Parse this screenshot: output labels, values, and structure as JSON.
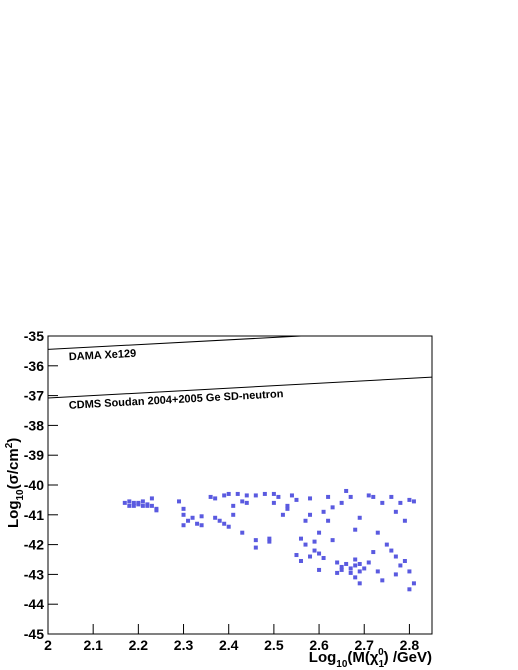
{
  "chart_data": {
    "type": "scatter",
    "x_label": [
      "Log",
      "10",
      "(M(χ",
      "1",
      "0",
      ") /GeV)"
    ],
    "y_label": [
      "Log",
      "10",
      "(σ/cm",
      "2",
      ")"
    ],
    "xlim": [
      2,
      2.85
    ],
    "ylim": [
      -45,
      -35
    ],
    "xticks": [
      2,
      2.1,
      2.2,
      2.3,
      2.4,
      2.5,
      2.6,
      2.7,
      2.8
    ],
    "yticks": [
      -45,
      -44,
      -43,
      -42,
      -41,
      -40,
      -39,
      -38,
      -37,
      -36,
      -35
    ],
    "curves": [
      {
        "label": "DAMA Xe129",
        "x": [
          2,
          2.56
        ],
        "y": [
          -35.45,
          -35.0
        ]
      },
      {
        "label": "CDMS Soudan 2004+2005 Ge SD-neutron",
        "x": [
          2,
          2.85
        ],
        "y": [
          -37.08,
          -36.38
        ]
      }
    ],
    "series": [
      {
        "color": "#5a5ae0",
        "x": [
          2.17,
          2.18,
          2.18,
          2.19,
          2.19,
          2.2,
          2.2,
          2.21,
          2.21,
          2.22,
          2.22,
          2.23,
          2.23,
          2.24,
          2.24,
          2.29,
          2.3,
          2.3,
          2.31,
          2.3,
          2.32,
          2.33,
          2.34,
          2.34,
          2.36,
          2.37,
          2.37,
          2.38,
          2.39,
          2.39,
          2.4,
          2.4,
          2.41,
          2.41,
          2.42,
          2.43,
          2.43,
          2.44,
          2.44,
          2.46,
          2.46,
          2.46,
          2.48,
          2.49,
          2.49,
          2.5,
          2.5,
          2.51,
          2.52,
          2.53,
          2.53,
          2.54,
          2.55,
          2.55,
          2.56,
          2.56,
          2.57,
          2.57,
          2.58,
          2.58,
          2.58,
          2.59,
          2.59,
          2.6,
          2.6,
          2.6,
          2.61,
          2.61,
          2.62,
          2.62,
          2.63,
          2.63,
          2.64,
          2.64,
          2.65,
          2.65,
          2.65,
          2.66,
          2.66,
          2.67,
          2.67,
          2.67,
          2.68,
          2.68,
          2.68,
          2.68,
          2.69,
          2.69,
          2.69,
          2.69,
          2.7,
          2.71,
          2.71,
          2.72,
          2.72,
          2.73,
          2.73,
          2.74,
          2.74,
          2.75,
          2.76,
          2.76,
          2.77,
          2.77,
          2.77,
          2.78,
          2.78,
          2.79,
          2.79,
          2.8,
          2.8,
          2.8,
          2.81,
          2.81
        ],
        "y": [
          -40.6,
          -40.55,
          -40.7,
          -40.6,
          -40.7,
          -40.6,
          -40.65,
          -40.55,
          -40.7,
          -40.65,
          -40.7,
          -40.45,
          -40.7,
          -40.8,
          -40.85,
          -40.55,
          -40.8,
          -41.0,
          -41.2,
          -41.35,
          -41.1,
          -41.3,
          -41.05,
          -41.35,
          -40.4,
          -40.45,
          -41.1,
          -41.2,
          -41.3,
          -40.35,
          -40.3,
          -41.4,
          -40.7,
          -41.0,
          -40.3,
          -40.55,
          -41.6,
          -40.35,
          -40.6,
          -40.35,
          -41.85,
          -42.1,
          -40.3,
          -41.8,
          -41.9,
          -40.3,
          -40.6,
          -40.4,
          -41.0,
          -40.7,
          -40.8,
          -40.35,
          -40.5,
          -42.35,
          -41.8,
          -42.55,
          -41.2,
          -42.0,
          -42.4,
          -41.0,
          -40.45,
          -41.9,
          -42.2,
          -42.3,
          -41.6,
          -42.85,
          -40.9,
          -42.45,
          -40.4,
          -41.2,
          -40.75,
          -41.85,
          -42.6,
          -42.95,
          -42.75,
          -42.85,
          -40.6,
          -40.2,
          -42.65,
          -42.8,
          -42.95,
          -40.4,
          -42.7,
          -42.5,
          -43.1,
          -41.5,
          -42.65,
          -42.9,
          -41.1,
          -43.3,
          -42.8,
          -40.35,
          -42.6,
          -40.4,
          -42.25,
          -41.6,
          -42.9,
          -43.2,
          -40.6,
          -42.0,
          -42.2,
          -40.4,
          -42.4,
          -40.9,
          -43.0,
          -40.6,
          -42.7,
          -41.2,
          -42.55,
          -40.5,
          -42.9,
          -43.5,
          -43.3,
          -40.55
        ]
      }
    ]
  }
}
